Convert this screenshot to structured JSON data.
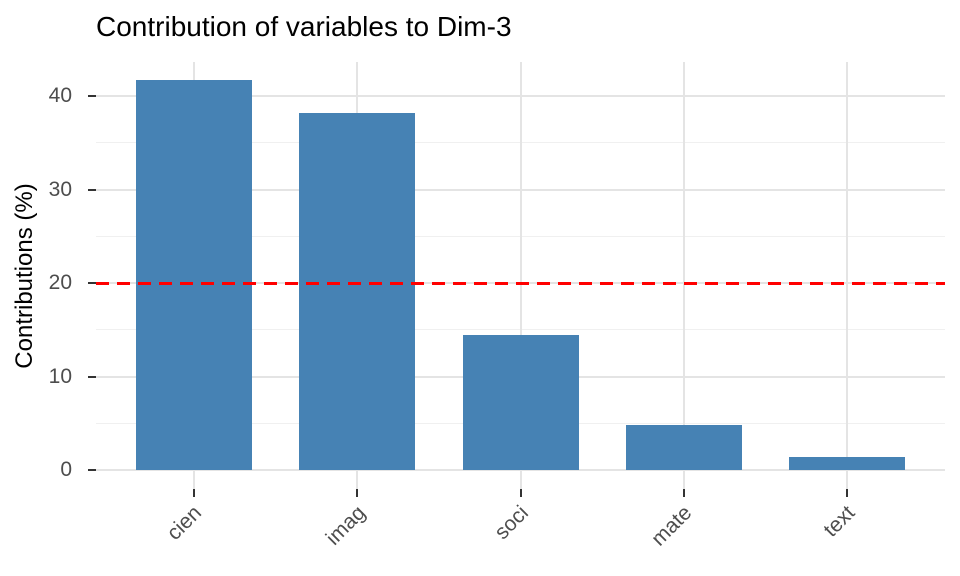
{
  "chart_data": {
    "type": "bar",
    "title": "Contribution of variables to Dim-3",
    "xlabel": "",
    "ylabel": "Contributions (%)",
    "categories": [
      "cien",
      "imag",
      "soci",
      "mate",
      "text"
    ],
    "values": [
      41.7,
      38.2,
      14.4,
      4.8,
      1.4
    ],
    "yticks": [
      0,
      10,
      20,
      30,
      40
    ],
    "ylim": [
      -2,
      43.7
    ],
    "grid": true,
    "legend": "none",
    "reference_line": {
      "value": 20,
      "style": "dashed",
      "color": "#FF0000"
    },
    "bar_color": "#4682B4"
  },
  "colors": {
    "bar": "#4682B4",
    "reference": "#FF0000",
    "grid_major": "#E4E4E4",
    "grid_minor": "#F0F0F0",
    "tick_mark": "#333333",
    "tick_label": "#4D4D4D",
    "title": "#000000",
    "background": "#FFFFFF"
  }
}
